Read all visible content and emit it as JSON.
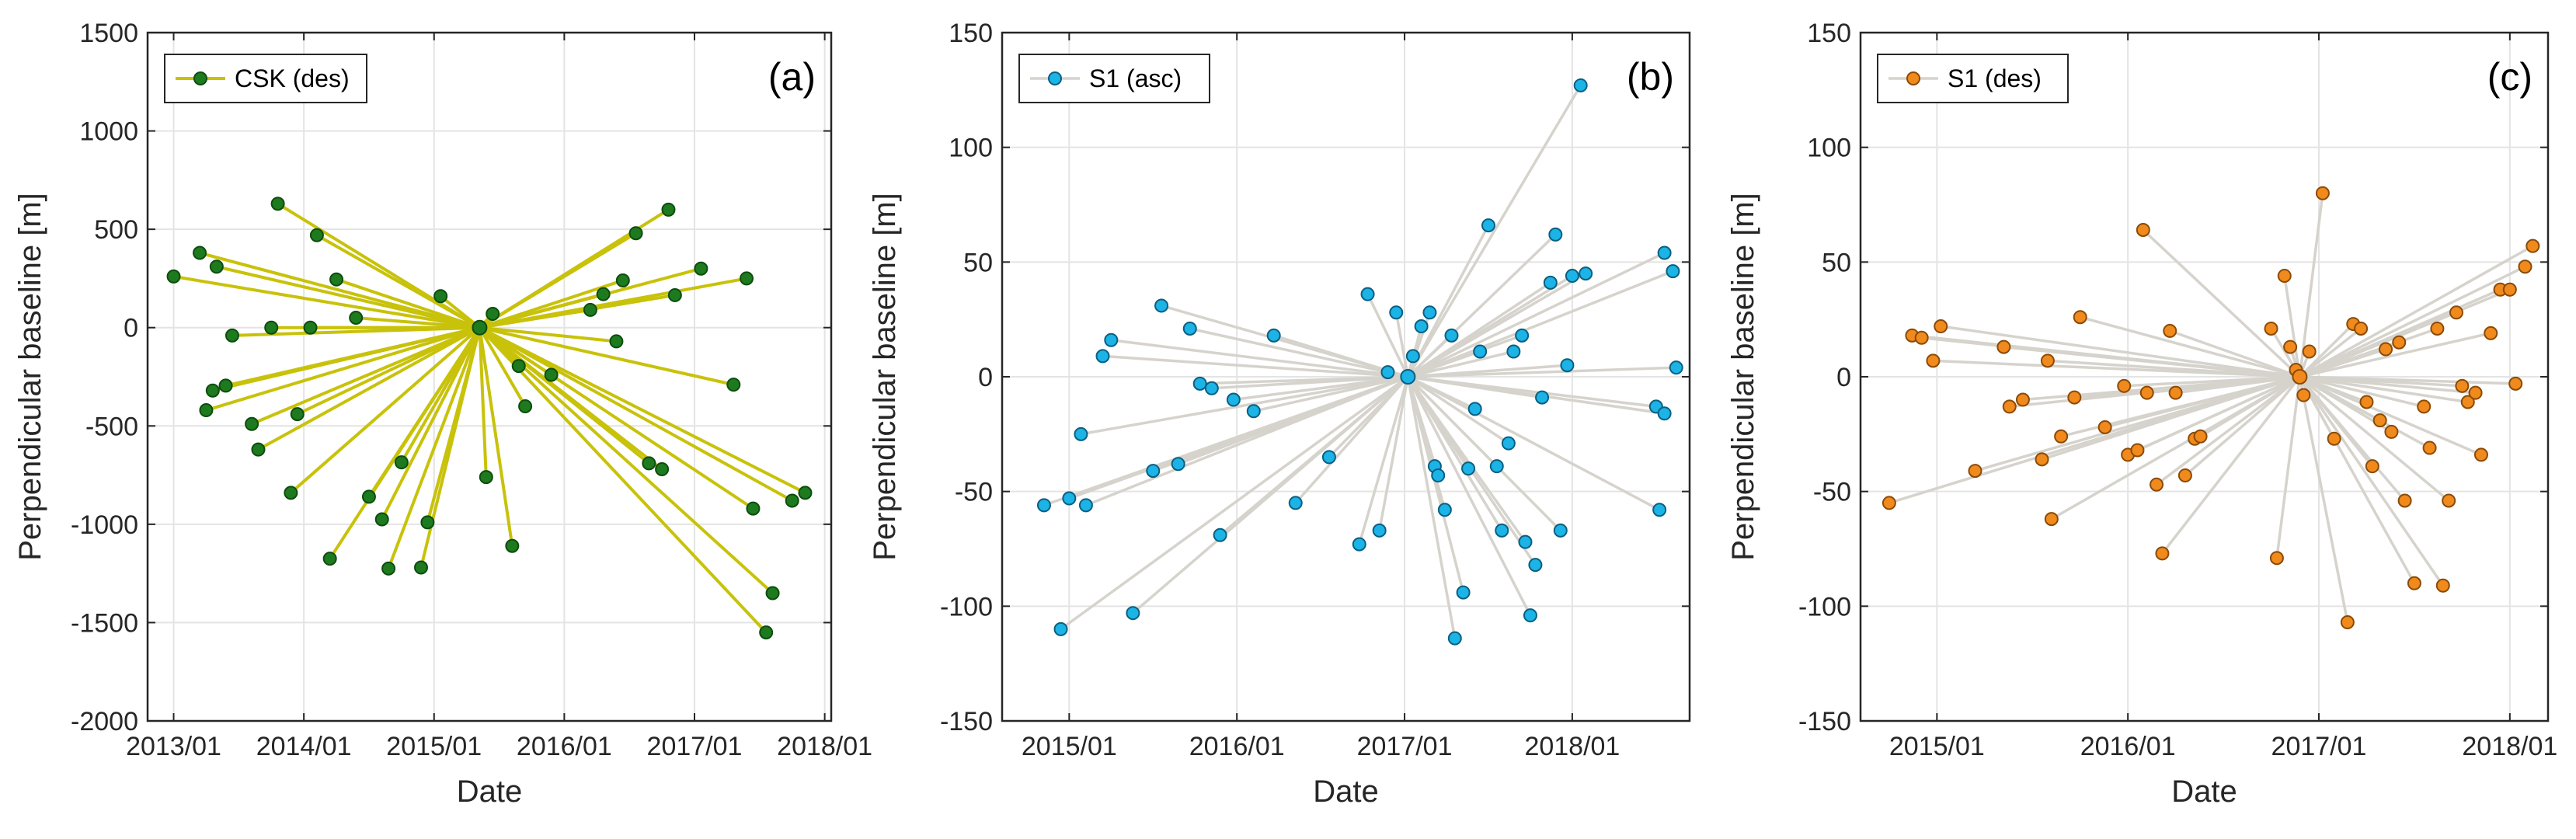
{
  "chart_data": [
    {
      "type": "scatter",
      "id": "a",
      "panel_label": "(a)",
      "xlabel": "Date",
      "ylabel": "Perpendicular baseline [m]",
      "xlim": [
        2012.8,
        2018.05
      ],
      "ylim": [
        -2000,
        1500
      ],
      "xticks": [
        2013,
        2014,
        2015,
        2016,
        2017,
        2018
      ],
      "xtick_labels": [
        "2013/01",
        "2014/01",
        "2015/01",
        "2016/01",
        "2017/01",
        "2018/01"
      ],
      "yticks": [
        -2000,
        -1500,
        -1000,
        -500,
        0,
        500,
        1000,
        1500
      ],
      "ytick_labels": [
        "-2000",
        "-1500",
        "-1000",
        "-500",
        "0",
        "500",
        "1000",
        "1500"
      ],
      "grid": true,
      "legend": {
        "label": "CSK (des)",
        "location": "top-left"
      },
      "line_color": "#c8c20a",
      "marker_color": "#1e7a1e",
      "marker_edge": "#0d4d0d",
      "master": {
        "x": 2015.35,
        "y": 0
      },
      "x": [
        2013.0,
        2013.2,
        2013.33,
        2013.3,
        2013.45,
        2013.8,
        2013.75,
        2014.1,
        2014.25,
        2014.05,
        2013.95,
        2014.4,
        2013.4,
        2013.25,
        2013.6,
        2013.65,
        2013.9,
        2014.2,
        2014.5,
        2014.75,
        2014.65,
        2014.6,
        2014.9,
        2014.95,
        2015.05,
        2015.45,
        2015.4,
        2015.6,
        2015.65,
        2015.7,
        2015.9,
        2016.2,
        2016.3,
        2016.45,
        2016.55,
        2016.8,
        2017.05,
        2016.85,
        2017.4,
        2016.4,
        2017.3,
        2016.65,
        2016.75,
        2017.55,
        2017.6,
        2017.85,
        2017.75,
        2017.45
      ],
      "y": [
        260,
        380,
        310,
        -320,
        -40,
        630,
        0,
        470,
        245,
        0,
        -440,
        50,
        -295,
        -420,
        -490,
        -620,
        -840,
        -1175,
        -860,
        -685,
        -1225,
        -975,
        -1220,
        -990,
        160,
        70,
        -760,
        -1110,
        -195,
        -400,
        -240,
        90,
        170,
        240,
        480,
        600,
        300,
        165,
        250,
        -70,
        -290,
        -690,
        -720,
        -1550,
        -1350,
        -840,
        -880,
        -920
      ]
    },
    {
      "type": "scatter",
      "id": "b",
      "panel_label": "(b)",
      "xlabel": "Date",
      "ylabel": "Perpendicular baseline [m]",
      "xlim": [
        2014.6,
        2018.7
      ],
      "ylim": [
        -150,
        150
      ],
      "xticks": [
        2015,
        2016,
        2017,
        2018
      ],
      "xtick_labels": [
        "2015/01",
        "2016/01",
        "2017/01",
        "2018/01"
      ],
      "yticks": [
        -150,
        -100,
        -50,
        0,
        50,
        100,
        150
      ],
      "ytick_labels": [
        "-150",
        "-100",
        "-50",
        "0",
        "50",
        "100",
        "150"
      ],
      "grid": true,
      "legend": {
        "label": "S1 (asc)",
        "location": "top-left"
      },
      "line_color": "#d6d3cd",
      "marker_color": "#1cb3e6",
      "marker_edge": "#0a5f80",
      "master": {
        "x": 2017.02,
        "y": 0
      },
      "x": [
        2014.85,
        2014.95,
        2015.0,
        2015.07,
        2015.1,
        2015.2,
        2015.25,
        2015.38,
        2015.5,
        2015.55,
        2015.65,
        2015.72,
        2015.78,
        2015.85,
        2015.9,
        2015.98,
        2016.1,
        2016.22,
        2016.35,
        2016.55,
        2016.73,
        2016.78,
        2016.85,
        2016.9,
        2016.95,
        2017.05,
        2017.1,
        2017.15,
        2017.18,
        2017.2,
        2017.24,
        2017.28,
        2017.3,
        2017.35,
        2017.38,
        2017.42,
        2017.45,
        2017.5,
        2017.55,
        2017.58,
        2017.62,
        2017.65,
        2017.7,
        2017.72,
        2017.75,
        2017.78,
        2017.82,
        2017.87,
        2017.9,
        2017.93,
        2017.97,
        2018.0,
        2018.05,
        2018.08,
        2018.5,
        2018.52,
        2018.55,
        2018.6
      ],
      "y": [
        -56,
        -110,
        -53,
        -25,
        -56,
        9,
        16,
        -103,
        -41,
        31,
        -38,
        21,
        -3,
        -5,
        -69,
        -10,
        -15,
        18,
        -55,
        -35,
        -73,
        36,
        -67,
        2,
        28,
        9,
        22,
        28,
        -39,
        -43,
        -58,
        18,
        -114,
        -94,
        -40,
        -14,
        11,
        66,
        -39,
        -67,
        -29,
        11,
        18,
        -72,
        -104,
        -82,
        -9,
        41,
        62,
        -67,
        5,
        44,
        127,
        45,
        -13,
        -58,
        -16,
        46
      ],
      "x2": [
        2018.55,
        2018.62
      ],
      "y2": [
        54,
        4
      ]
    },
    {
      "type": "scatter",
      "id": "c",
      "panel_label": "(c)",
      "xlabel": "Date",
      "ylabel": "Perpendicular baseline [m]",
      "xlim": [
        2014.6,
        2018.2
      ],
      "ylim": [
        -150,
        150
      ],
      "xticks": [
        2015,
        2016,
        2017,
        2018
      ],
      "xtick_labels": [
        "2015/01",
        "2016/01",
        "2017/01",
        "2018/01"
      ],
      "yticks": [
        -150,
        -100,
        -50,
        0,
        50,
        100,
        150
      ],
      "ytick_labels": [
        "-150",
        "-100",
        "-50",
        "0",
        "50",
        "100",
        "150"
      ],
      "grid": true,
      "legend": {
        "label": "S1 (des)",
        "location": "top-left"
      },
      "line_color": "#d6d3cd",
      "marker_color": "#f08a1c",
      "marker_edge": "#8a4a08",
      "master": {
        "x": 2016.9,
        "y": 0
      },
      "x": [
        2014.75,
        2014.87,
        2014.92,
        2014.98,
        2015.02,
        2015.2,
        2015.35,
        2015.38,
        2015.45,
        2015.55,
        2015.58,
        2015.6,
        2015.65,
        2015.72,
        2015.75,
        2015.88,
        2015.98,
        2016.0,
        2016.05,
        2016.08,
        2016.1,
        2016.15,
        2016.18,
        2016.22,
        2016.25,
        2016.3,
        2016.35,
        2016.38,
        2016.75,
        2016.78,
        2016.82,
        2016.85,
        2016.88,
        2016.92,
        2016.95,
        2017.02,
        2017.08,
        2017.15,
        2017.18,
        2017.22,
        2017.25,
        2017.28,
        2017.32,
        2017.35,
        2017.38,
        2017.42,
        2017.45,
        2017.5,
        2017.55,
        2017.58,
        2017.62,
        2017.65,
        2017.68,
        2017.72,
        2017.75,
        2017.78,
        2017.82,
        2017.85,
        2017.9,
        2017.95,
        2018.0,
        2018.03,
        2018.08,
        2018.12
      ],
      "y": [
        -55,
        18,
        17,
        7,
        22,
        -41,
        13,
        -13,
        -10,
        -36,
        7,
        -62,
        -26,
        -9,
        26,
        -22,
        -4,
        -34,
        -32,
        64,
        -7,
        -47,
        -77,
        20,
        -7,
        -43,
        -27,
        -26,
        21,
        -79,
        44,
        13,
        3,
        -8,
        11,
        80,
        -27,
        -107,
        23,
        21,
        -11,
        -39,
        -19,
        12,
        -24,
        15,
        -54,
        -90,
        -13,
        -31,
        21,
        -91,
        -54,
        28,
        -4,
        -11,
        -7,
        -34,
        19,
        38,
        38,
        -3,
        48,
        57
      ]
    }
  ]
}
